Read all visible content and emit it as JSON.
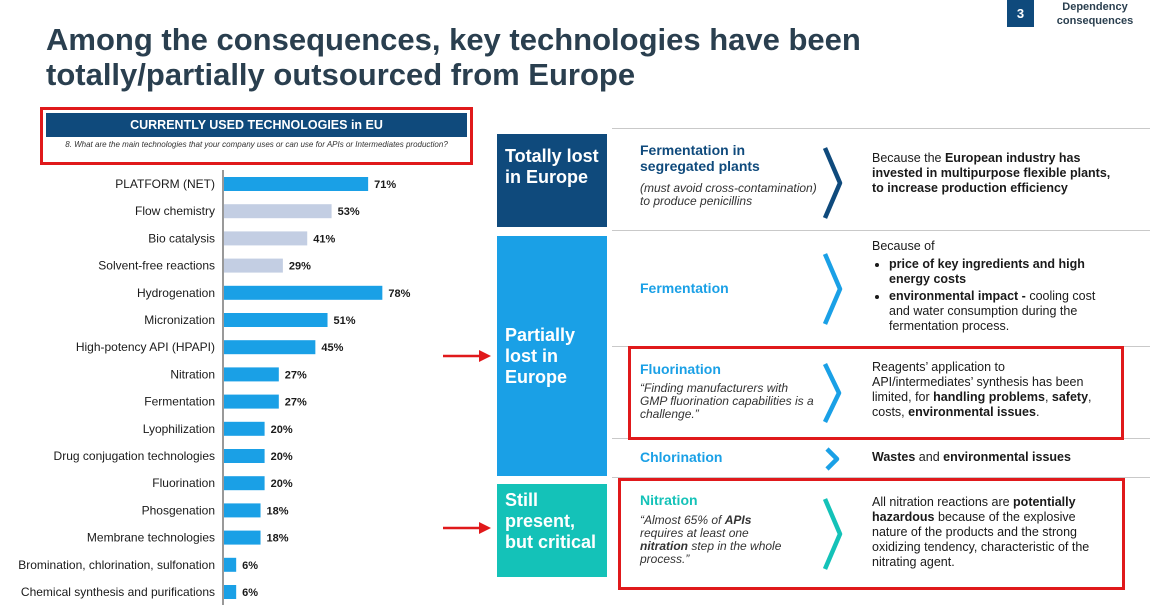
{
  "header": {
    "title": "Among the consequences, key technologies have been totally/partially outsourced from Europe",
    "page_number": "3",
    "section_label": "Dependency consequences"
  },
  "survey": {
    "header": "CURRENTLY USED TECHNOLOGIES in EU",
    "question": "8. What are the main technologies that your company uses or can use for APIs or Intermediates production?"
  },
  "chart_data": {
    "type": "bar",
    "orientation": "horizontal",
    "title": "CURRENTLY USED TECHNOLOGIES in EU",
    "categories": [
      "PLATFORM (NET)",
      "Flow chemistry",
      "Bio catalysis",
      "Solvent-free reactions",
      "Hydrogenation",
      "Micronization",
      "High-potency API (HPAPI)",
      "Nitration",
      "Fermentation",
      "Lyophilization",
      "Drug conjugation technologies",
      "Fluorination",
      "Phosgenation",
      "Membrane technologies",
      "Bromination, chlorination, sulfonation",
      "Chemical synthesis and purifications"
    ],
    "values": [
      71,
      53,
      41,
      29,
      78,
      51,
      45,
      27,
      27,
      20,
      20,
      20,
      18,
      18,
      6,
      6
    ],
    "value_labels": [
      "71%",
      "53%",
      "41%",
      "29%",
      "78%",
      "51%",
      "45%",
      "27%",
      "27%",
      "20%",
      "20%",
      "20%",
      "18%",
      "18%",
      "6%",
      "6%"
    ],
    "highlight": [
      true,
      false,
      false,
      false,
      true,
      true,
      true,
      true,
      true,
      true,
      true,
      true,
      true,
      true,
      true,
      true
    ],
    "colors": {
      "primary": "#1aa0e6",
      "secondary": "#c3cee3"
    },
    "xlim": [
      0,
      100
    ],
    "grid": false,
    "legend": "none"
  },
  "categories": {
    "totally": {
      "label": "Totally lost in Europe",
      "color": "#0f4a7c"
    },
    "partially": {
      "label": "Partially lost in Europe",
      "color": "#1aa0e6"
    },
    "still": {
      "label": "Still present, but critical",
      "color": "#14c2b8"
    }
  },
  "technologies": {
    "fermentation_segregated": {
      "name": "Fermentation in segregated plants",
      "note": "(must avoid cross-contamination) to produce penicillins",
      "desc_prefix": "Because the ",
      "desc_bold": "European industry has invested in multipurpose flexible plants, to increase production efficiency"
    },
    "fermentation": {
      "name": "Fermentation",
      "desc_intro": "Because of",
      "bullet1_bold": "price of key ingredients and high energy costs",
      "bullet2_bold": "environmental impact -",
      "bullet2_rest": " cooling cost and water consumption during the fermentation process."
    },
    "fluorination": {
      "name": "Fluorination",
      "note": "“Finding manufacturers with GMP fluorination capabilities is a challenge.”",
      "desc_part1": "Reagents’ application to API/intermediates’ synthesis has been limited, for ",
      "desc_bold1": "handling problems",
      "desc_part2": ", ",
      "desc_bold2": "safety",
      "desc_part3": ", costs, ",
      "desc_bold3": "environmental issues",
      "desc_part4": "."
    },
    "chlorination": {
      "name": "Chlorination",
      "desc_bold1": "Wastes",
      "desc_part1": " and ",
      "desc_bold2": "environmental issues"
    },
    "nitration": {
      "name": "Nitration",
      "note_part1": "“Almost 65% of ",
      "note_bold1": "APIs",
      "note_part2": " requires at least one ",
      "note_bold2": "nitration",
      "note_part3": " step in the whole process.”",
      "desc_part1": "All nitration reactions are ",
      "desc_bold1": "potentially hazardous",
      "desc_part2": " because of the explosive nature of the products and the strong oxidizing tendency, characteristic of the nitrating agent."
    }
  },
  "colors": {
    "accent_red": "#e0191b",
    "navy": "#0f4a7c",
    "blue": "#1aa0e6",
    "teal": "#14c2b8",
    "title": "#2a3f4f"
  }
}
